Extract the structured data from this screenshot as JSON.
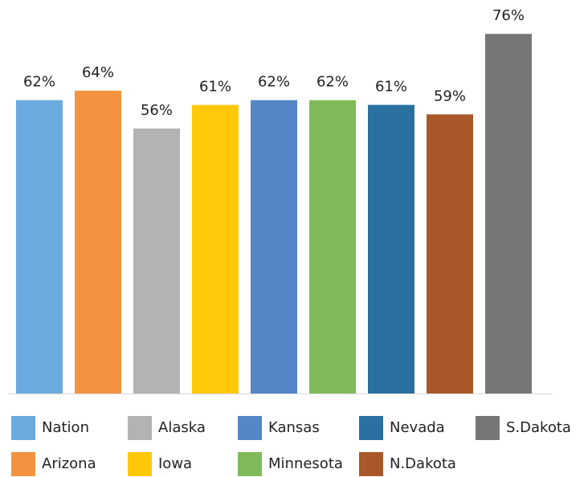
{
  "chart_data": {
    "type": "bar",
    "series": [
      {
        "name": "Nation",
        "color": "#6aaadf",
        "values": [
          62
        ],
        "value_labels": [
          "62%"
        ]
      },
      {
        "name": "Arizona",
        "color": "#f3933f",
        "values": [
          64
        ],
        "value_labels": [
          "64%"
        ]
      },
      {
        "name": "Alaska",
        "color": "#b3b3b3",
        "values": [
          56
        ],
        "value_labels": [
          "56%"
        ]
      },
      {
        "name": "Iowa",
        "color": "#ffc90a",
        "values": [
          61
        ],
        "value_labels": [
          "61%"
        ]
      },
      {
        "name": "Kansas",
        "color": "#5586c8",
        "values": [
          62
        ],
        "value_labels": [
          "62%"
        ]
      },
      {
        "name": "Minnesota",
        "color": "#7fba5a",
        "values": [
          62
        ],
        "value_labels": [
          "62%"
        ]
      },
      {
        "name": "Nevada",
        "color": "#2a70a1",
        "values": [
          61
        ],
        "value_labels": [
          "61%"
        ]
      },
      {
        "name": "N.Dakota",
        "color": "#a9582a",
        "values": [
          59
        ],
        "value_labels": [
          "59%"
        ]
      },
      {
        "name": "S.Dakota",
        "color": "#767676",
        "values": [
          76
        ],
        "value_labels": [
          "76%"
        ]
      }
    ],
    "ylim": [
      0,
      83
    ]
  }
}
